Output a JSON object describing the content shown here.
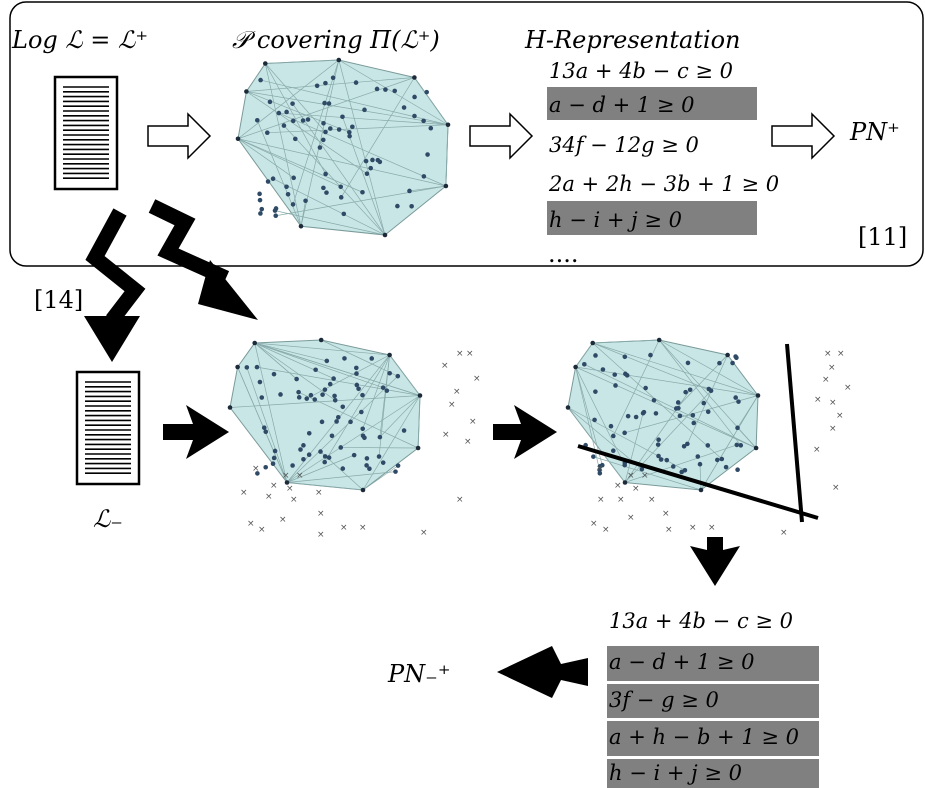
{
  "top": {
    "log_label": "Log ℒ = ℒ⁺",
    "cover_label": "𝒫  covering Π(ℒ⁺)",
    "hrep_label": "H-Representation",
    "pn_label": "PN⁺",
    "ref": "[11]",
    "constraints": [
      {
        "text": "13a + 4b − c ≥ 0",
        "highlight": false
      },
      {
        "text": "a − d + 1 ≥ 0",
        "highlight": true
      },
      {
        "text": "34f − 12g ≥ 0",
        "highlight": false
      },
      {
        "text": "2a + 2h − 3b + 1 ≥ 0",
        "highlight": false
      },
      {
        "text": "h − i + j ≥ 0",
        "highlight": true
      }
    ],
    "ellipsis": "...."
  },
  "middle": {
    "ref": "[14]",
    "neg_log_label": "ℒ₋"
  },
  "bottom": {
    "pn_label": "PN₋⁺",
    "constraints": [
      {
        "text": "13a + 4b − c ≥ 0",
        "highlight": false
      },
      {
        "text": "a − d + 1 ≥ 0",
        "highlight": true
      },
      {
        "text": "3f − g ≥ 0",
        "highlight": true
      },
      {
        "text": "a + h − b + 1 ≥ 0",
        "highlight": true
      },
      {
        "text": "h − i + j ≥ 0",
        "highlight": true
      }
    ]
  },
  "colors": {
    "polytope_fill": "#c9e6e6",
    "highlight": "#808080",
    "dot": "#2f4a66"
  }
}
